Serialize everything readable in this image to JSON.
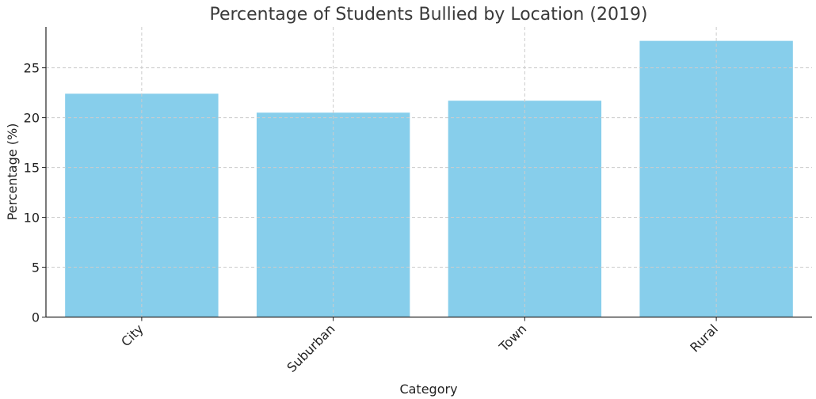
{
  "chart_data": {
    "type": "bar",
    "title": "Percentage of Students Bullied by Location (2019)",
    "xlabel": "Category",
    "ylabel": "Percentage (%)",
    "categories": [
      "City",
      "Suburban",
      "Town",
      "Rural"
    ],
    "values": [
      22.4,
      20.5,
      21.7,
      27.7
    ],
    "ylim": [
      0,
      29.1
    ],
    "yticks": [
      0,
      5,
      10,
      15,
      20,
      25
    ],
    "grid": true,
    "bar_color": "#87CEEB",
    "xtick_rotation": "45deg, right-aligned"
  }
}
